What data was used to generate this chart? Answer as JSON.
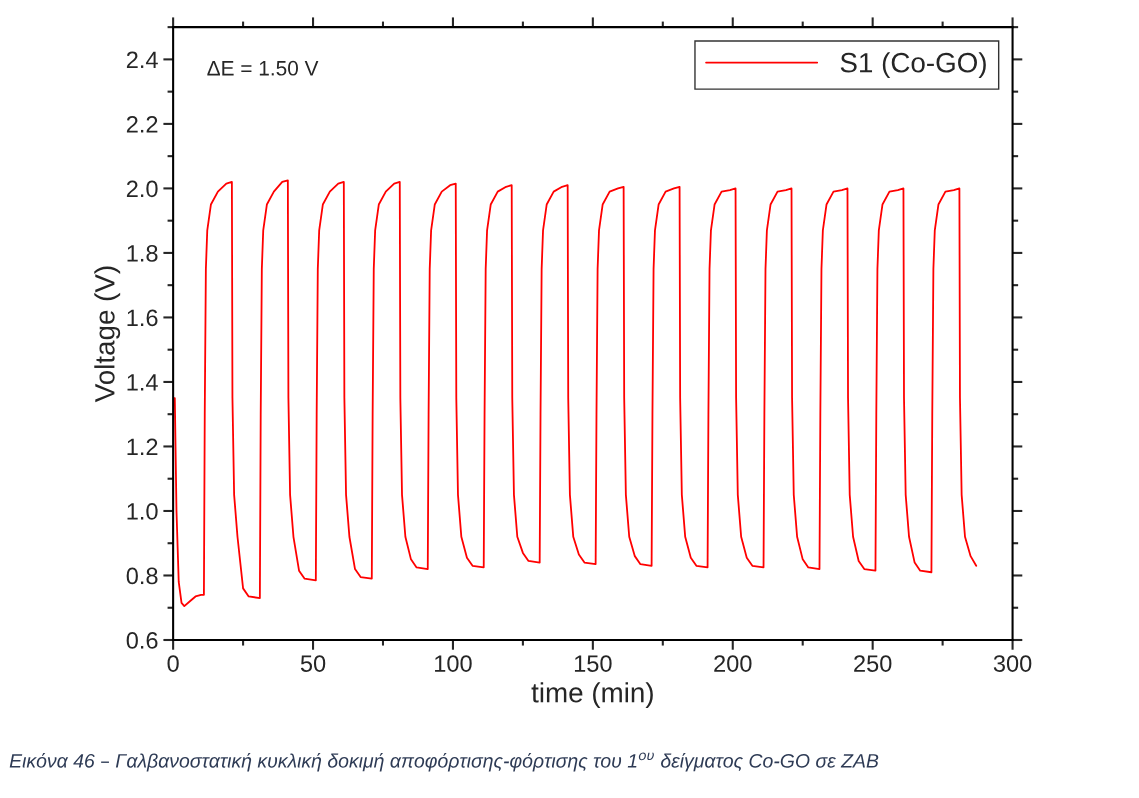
{
  "chart_data": {
    "type": "line",
    "xlabel": "time (min)",
    "ylabel": "Voltage (V)",
    "xlim": [
      0,
      300
    ],
    "xticks": [
      0,
      50,
      100,
      150,
      200,
      250,
      300
    ],
    "ylim": [
      0.6,
      2.5
    ],
    "yticks": [
      0.6,
      0.8,
      {
        "value": 1.0,
        "label": "1.0"
      },
      1.2,
      1.4,
      1.6,
      1.8,
      {
        "value": 2.0,
        "label": "2.0"
      },
      2.2,
      2.4
    ],
    "grid": false,
    "legend": "top right",
    "marker": "none",
    "line_style": "solid",
    "annotations": [
      "ΔE = 1.50 V",
      "Εικόνα 46 – Γαλβανοστατική κυκλική δοκιμή αποφόρτισης-φόρτισης του 1$^{ου}$ δείγματος Co-GO σε ZAB"
    ],
    "series": [
      {
        "name": "S1 (Co-GO)",
        "color": "#ff0000",
        "x": [
          0,
          0.6,
          1.2,
          2,
          3,
          4,
          6,
          8,
          10,
          11,
          11.3,
          11.7,
          12.2,
          13.5,
          16,
          19,
          21,
          21.2,
          21.8,
          23,
          25,
          27,
          31,
          31.3,
          31.7,
          32.2,
          33.5,
          36,
          39,
          41,
          41.2,
          41.8,
          43,
          45,
          47,
          51,
          51.3,
          51.7,
          52.2,
          53.5,
          56,
          59,
          61,
          61.2,
          61.8,
          63,
          65,
          67,
          71,
          71.3,
          71.7,
          72.2,
          73.5,
          76,
          79,
          81,
          81.2,
          81.8,
          83,
          85,
          87,
          91,
          91.3,
          91.7,
          92.2,
          93.5,
          96,
          99,
          101,
          101.2,
          101.8,
          103,
          105,
          107,
          111,
          111.3,
          111.7,
          112.2,
          113.5,
          116,
          119,
          121,
          121.2,
          121.8,
          123,
          125,
          127,
          131,
          131.3,
          131.7,
          132.2,
          133.5,
          136,
          139,
          141,
          141.2,
          141.8,
          143,
          145,
          147,
          151,
          151.3,
          151.7,
          152.2,
          153.5,
          156,
          159,
          161,
          161.2,
          161.8,
          163,
          165,
          167,
          171,
          171.3,
          171.7,
          172.2,
          173.5,
          176,
          179,
          181,
          181.2,
          181.8,
          183,
          185,
          187,
          191,
          191.3,
          191.7,
          192.2,
          193.5,
          196,
          199,
          201,
          201.2,
          201.8,
          203,
          205,
          207,
          211,
          211.3,
          211.7,
          212.2,
          213.5,
          216,
          219,
          221,
          221.2,
          221.8,
          223,
          225,
          227,
          231,
          231.3,
          231.7,
          232.2,
          233.5,
          236,
          239,
          241,
          241.2,
          241.8,
          243,
          245,
          247,
          251,
          251.3,
          251.7,
          252.2,
          253.5,
          256,
          259,
          261,
          261.2,
          261.8,
          263,
          265,
          267,
          271,
          271.3,
          271.7,
          272.2,
          273.5,
          276,
          279,
          281,
          281.2,
          281.8,
          283,
          285,
          287
        ],
        "values": [
          1.35,
          1.35,
          1.0,
          0.78,
          0.715,
          0.705,
          0.72,
          0.735,
          0.74,
          0.74,
          1.3,
          1.75,
          1.87,
          1.95,
          1.99,
          2.015,
          2.02,
          1.35,
          1.05,
          0.92,
          0.76,
          0.735,
          0.73,
          1.3,
          1.75,
          1.87,
          1.95,
          1.99,
          2.02,
          2.025,
          1.35,
          1.05,
          0.92,
          0.815,
          0.79,
          0.785,
          1.3,
          1.75,
          1.87,
          1.95,
          1.99,
          2.015,
          2.02,
          1.35,
          1.05,
          0.92,
          0.82,
          0.795,
          0.79,
          1.3,
          1.75,
          1.87,
          1.95,
          1.99,
          2.015,
          2.02,
          1.35,
          1.05,
          0.92,
          0.85,
          0.825,
          0.82,
          1.3,
          1.75,
          1.87,
          1.95,
          1.99,
          2.01,
          2.015,
          1.35,
          1.05,
          0.92,
          0.855,
          0.83,
          0.825,
          1.3,
          1.75,
          1.87,
          1.95,
          1.99,
          2.005,
          2.01,
          1.35,
          1.05,
          0.92,
          0.87,
          0.845,
          0.84,
          1.3,
          1.75,
          1.87,
          1.95,
          1.99,
          2.005,
          2.01,
          1.35,
          1.05,
          0.92,
          0.865,
          0.84,
          0.835,
          1.3,
          1.75,
          1.87,
          1.95,
          1.99,
          2.0,
          2.005,
          1.35,
          1.05,
          0.92,
          0.86,
          0.835,
          0.83,
          1.3,
          1.75,
          1.87,
          1.95,
          1.99,
          2.0,
          2.005,
          1.35,
          1.05,
          0.92,
          0.855,
          0.83,
          0.825,
          1.3,
          1.75,
          1.87,
          1.95,
          1.99,
          1.995,
          2.0,
          1.35,
          1.05,
          0.92,
          0.855,
          0.83,
          0.825,
          1.3,
          1.75,
          1.87,
          1.95,
          1.99,
          1.995,
          2.0,
          1.35,
          1.05,
          0.92,
          0.85,
          0.825,
          0.82,
          1.3,
          1.75,
          1.87,
          1.95,
          1.99,
          1.995,
          2.0,
          1.35,
          1.05,
          0.92,
          0.845,
          0.82,
          0.815,
          1.3,
          1.75,
          1.87,
          1.95,
          1.99,
          1.995,
          2.0,
          1.35,
          1.05,
          0.92,
          0.84,
          0.815,
          0.81,
          1.3,
          1.75,
          1.87,
          1.95,
          1.99,
          1.995,
          2.0,
          1.35,
          1.05,
          0.92,
          0.86,
          0.83
        ]
      }
    ]
  }
}
